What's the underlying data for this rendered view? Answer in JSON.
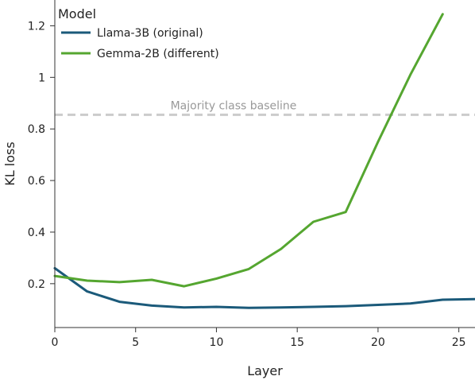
{
  "chart_data": {
    "type": "line",
    "xlabel": "Layer",
    "ylabel": "KL loss",
    "xlim": [
      0,
      26
    ],
    "ylim": [
      0.03,
      1.3
    ],
    "xticks": [
      0,
      5,
      10,
      15,
      20,
      25
    ],
    "yticks": [
      0.2,
      0.4,
      0.6,
      0.8,
      1.0,
      1.2
    ],
    "ytick_labels": [
      "0.2",
      "0.4",
      "0.6",
      "0.8",
      "1",
      "1.2"
    ],
    "grid": false,
    "legend": {
      "title": "Model",
      "placement": "top-left"
    },
    "series": [
      {
        "name": "Llama-3B (original)",
        "color": "#1b5a7a",
        "x": [
          0,
          2,
          4,
          6,
          8,
          10,
          12,
          14,
          16,
          18,
          20,
          22,
          24,
          26
        ],
        "y": [
          0.26,
          0.17,
          0.13,
          0.115,
          0.108,
          0.11,
          0.106,
          0.108,
          0.11,
          0.113,
          0.118,
          0.123,
          0.138,
          0.14
        ]
      },
      {
        "name": "Gemma-2B (different)",
        "color": "#55a630",
        "x": [
          0,
          2,
          4,
          6,
          8,
          10,
          12,
          14,
          16,
          18,
          20,
          22,
          24
        ],
        "y": [
          0.23,
          0.212,
          0.206,
          0.215,
          0.19,
          0.22,
          0.257,
          0.335,
          0.44,
          0.478,
          0.75,
          1.01,
          1.245
        ]
      }
    ],
    "annotations": [
      {
        "type": "hline",
        "y": 0.855,
        "label": "Majority class baseline",
        "color": "#cccccc",
        "style": "dashed"
      }
    ]
  }
}
